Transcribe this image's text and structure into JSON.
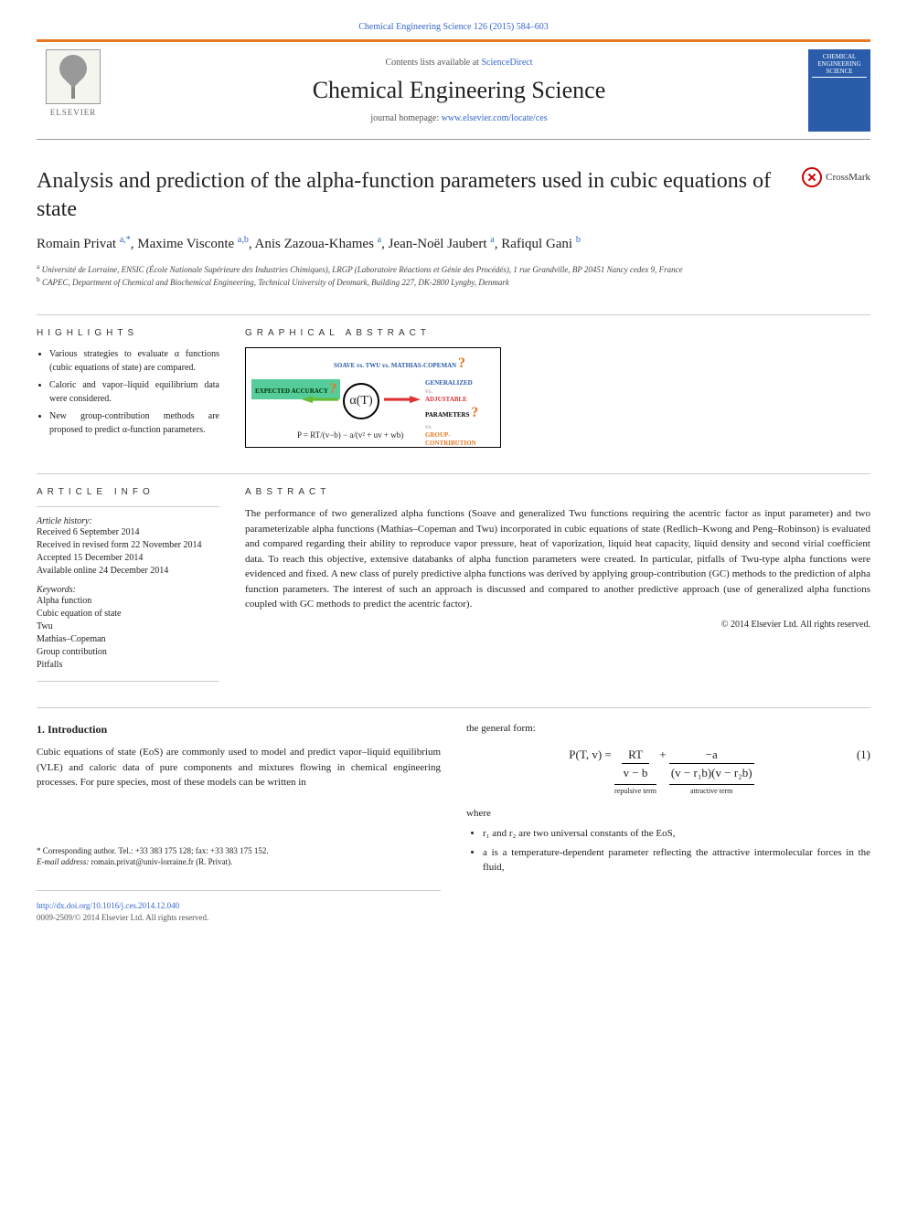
{
  "header": {
    "citation_prefix": "Chemical Engineering Science 126 (2015) 584–603",
    "contents_text": "Contents lists available at",
    "contents_link": "ScienceDirect",
    "journal_name": "Chemical Engineering Science",
    "homepage_text": "journal homepage:",
    "homepage_link": "www.elsevier.com/locate/ces",
    "publisher": "ELSEVIER",
    "cover_title": "CHEMICAL ENGINEERING SCIENCE"
  },
  "crossmark": "CrossMark",
  "title": "Analysis and prediction of the alpha-function parameters used in cubic equations of state",
  "authors_html": "Romain Privat <sup>a,*</sup>, Maxime Visconte <sup>a,b</sup>, Anis Zazoua-Khames <sup>a</sup>, Jean-Noël Jaubert <sup>a</sup>, Rafiqul Gani <sup>b</sup>",
  "affiliations": {
    "a": "Université de Lorraine, ENSIC (École Nationale Supérieure des Industries Chimiques), LRGP (Laboratoire Réactions et Génie des Procédés), 1 rue Grandville, BP 20451 Nancy cedex 9, France",
    "b": "CAPEC, Department of Chemical and Biochemical Engineering, Technical University of Denmark, Building 227, DK-2800 Lyngby, Denmark"
  },
  "highlights_heading": "HIGHLIGHTS",
  "highlights": [
    "Various strategies to evaluate α functions (cubic equations of state) are compared.",
    "Caloric and vapor–liquid equilibrium data were considered.",
    "New group-contribution methods are proposed to predict α-function parameters."
  ],
  "graphical_heading": "GRAPHICAL ABSTRACT",
  "ga": {
    "expected": "EXPECTED ACCURACY",
    "top_line": "SOAVE vs. TWU vs. MATHIAS-COPEMAN",
    "center": "α(T)",
    "right_gen": "GENERALIZED",
    "right_vs": "vs.",
    "right_adj": "ADJUSTABLE",
    "right_gc": "GROUP-CONTRIBUTION",
    "right_param": "PARAMETERS",
    "equation": "P = RT/(v−b) − a/(v² + uv + wb)"
  },
  "article_info_heading": "ARTICLE INFO",
  "article_info": {
    "history_label": "Article history:",
    "received": "Received 6 September 2014",
    "revised": "Received in revised form 22 November 2014",
    "accepted": "Accepted 15 December 2014",
    "online": "Available online 24 December 2014",
    "keywords_label": "Keywords:",
    "keywords": [
      "Alpha function",
      "Cubic equation of state",
      "Twu",
      "Mathias–Copeman",
      "Group contribution",
      "Pitfalls"
    ]
  },
  "abstract_heading": "ABSTRACT",
  "abstract_text": "The performance of two generalized alpha functions (Soave and generalized Twu functions requiring the acentric factor as input parameter) and two parameterizable alpha functions (Mathias–Copeman and Twu) incorporated in cubic equations of state (Redlich–Kwong and Peng–Robinson) is evaluated and compared regarding their ability to reproduce vapor pressure, heat of vaporization, liquid heat capacity, liquid density and second virial coefficient data. To reach this objective, extensive databanks of alpha function parameters were created. In particular, pitfalls of Twu-type alpha functions were evidenced and fixed. A new class of purely predictive alpha functions was derived by applying group-contribution (GC) methods to the prediction of alpha function parameters. The interest of such an approach is discussed and compared to another predictive approach (use of generalized alpha functions coupled with GC methods to predict the acentric factor).",
  "copyright": "© 2014 Elsevier Ltd. All rights reserved.",
  "intro_heading": "1. Introduction",
  "intro_text": "Cubic equations of state (EoS) are commonly used to model and predict vapor–liquid equilibrium (VLE) and caloric data of pure components and mixtures flowing in chemical engineering processes. For pure species, most of these models can be written in",
  "right_col_lead": "the general form:",
  "eq1": {
    "lhs": "P(T, v) =",
    "term1_num": "RT",
    "term1_den": "v − b",
    "term1_label": "repulsive term",
    "plus": "+",
    "term2_num": "−a",
    "term2_den": "(v − r₁b)(v − r₂b)",
    "term2_label": "attractive term",
    "num": "(1)"
  },
  "where": "where",
  "bullets": [
    "r₁ and r₂ are two universal constants of the EoS,",
    "a is a temperature-dependent parameter reflecting the attractive intermolecular forces in the fluid,"
  ],
  "footer": {
    "corr": "* Corresponding author. Tel.: +33 383 175 128; fax: +33 383 175 152.",
    "email_label": "E-mail address:",
    "email": "romain.privat@univ-lorraine.fr",
    "email_suffix": "(R. Privat).",
    "doi": "http://dx.doi.org/10.1016/j.ces.2014.12.040",
    "issn": "0009-2509/© 2014 Elsevier Ltd. All rights reserved."
  }
}
